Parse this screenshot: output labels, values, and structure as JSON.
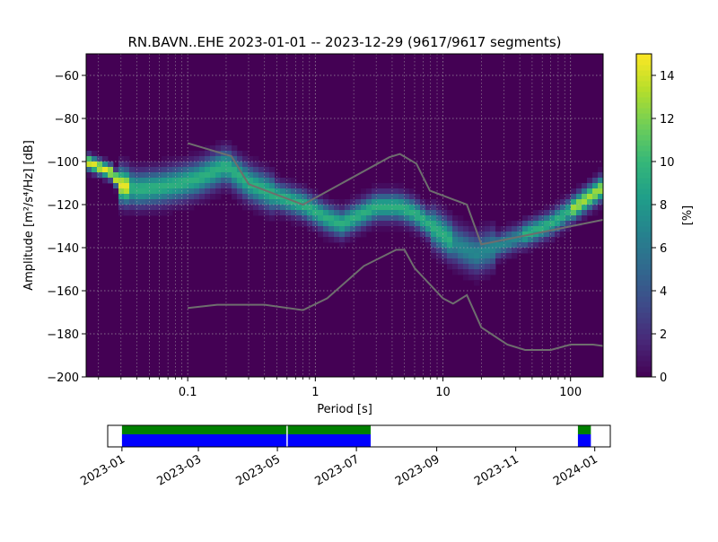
{
  "chart_data": [
    {
      "type": "heatmap",
      "title": "RN.BAVN..EHE   2023-01-01 -- 2023-12-29  (9617/9617 segments)",
      "xlabel": "Period [s]",
      "ylabel": "Amplitude [m²/s⁴/Hz] [dB]",
      "x_scale": "log",
      "xlim": [
        0.016,
        180
      ],
      "ylim": [
        -200,
        -50
      ],
      "x_ticks": [
        0.1,
        1,
        10,
        100
      ],
      "x_tick_labels": [
        "0.1",
        "1",
        "10",
        "100"
      ],
      "y_ticks": [
        -200,
        -180,
        -160,
        -140,
        -120,
        -100,
        -80,
        -60
      ],
      "y_tick_labels": [
        "−200",
        "−180",
        "−160",
        "−140",
        "−120",
        "−100",
        "−80",
        "−60"
      ],
      "grid": true,
      "colormap": "viridis",
      "colorbar": {
        "label": "[%]",
        "range": [
          0,
          15
        ],
        "ticks": [
          0,
          2,
          4,
          6,
          8,
          10,
          12,
          14
        ],
        "tick_labels": [
          "0",
          "2",
          "4",
          "6",
          "8",
          "10",
          "12",
          "14"
        ]
      },
      "mode_curve": {
        "period": [
          0.016,
          0.025,
          0.03,
          0.04,
          0.06,
          0.09,
          0.12,
          0.2,
          0.3,
          0.5,
          0.8,
          1.2,
          1.6,
          2.2,
          3,
          4.5,
          6,
          9,
          13,
          18,
          25,
          40,
          70,
          110,
          180
        ],
        "amplitude": [
          -100,
          -105,
          -111,
          -113,
          -112,
          -110,
          -108,
          -102,
          -110,
          -116,
          -120,
          -126,
          -129,
          -125,
          -121,
          -121,
          -124,
          -132,
          -139,
          -143,
          -140,
          -135,
          -129,
          -121,
          -112
        ]
      },
      "series": [
        {
          "name": "",
          "period": [
            0.1,
            0.22,
            0.3,
            0.8,
            3.8,
            4.6,
            6.2,
            7.9,
            15.4,
            20,
            200
          ],
          "amplitude": [
            -91.5,
            -97.5,
            -110.5,
            -120,
            -98,
            -96.5,
            -101,
            -113.5,
            -120,
            -138.5,
            -126.5
          ]
        },
        {
          "name": "",
          "period": [
            0.1,
            0.17,
            0.4,
            0.8,
            1.24,
            2.4,
            4.3,
            5.0,
            6.0,
            10,
            12,
            15.4,
            20,
            32,
            44,
            70,
            100,
            150,
            200
          ],
          "amplitude": [
            -168,
            -166.5,
            -166.5,
            -169,
            -163.5,
            -148.5,
            -141,
            -141,
            -149.5,
            -163.5,
            -166,
            -162,
            -177,
            -185,
            -187.5,
            -187.5,
            -185,
            -185,
            -186
          ]
        }
      ]
    },
    {
      "type": "timeline",
      "x_ticks": [
        "2023-01",
        "2023-03",
        "2023-05",
        "2023-07",
        "2023-09",
        "2023-11",
        "2024-01"
      ],
      "colors": {
        "green": "#008000",
        "blue": "#0000ff"
      },
      "segments": [
        {
          "start": "2023-01-01",
          "end": "2023-05-08"
        },
        {
          "start": "2023-05-09",
          "end": "2023-07-12"
        },
        {
          "start": "2023-12-19",
          "end": "2023-12-29"
        }
      ]
    }
  ]
}
